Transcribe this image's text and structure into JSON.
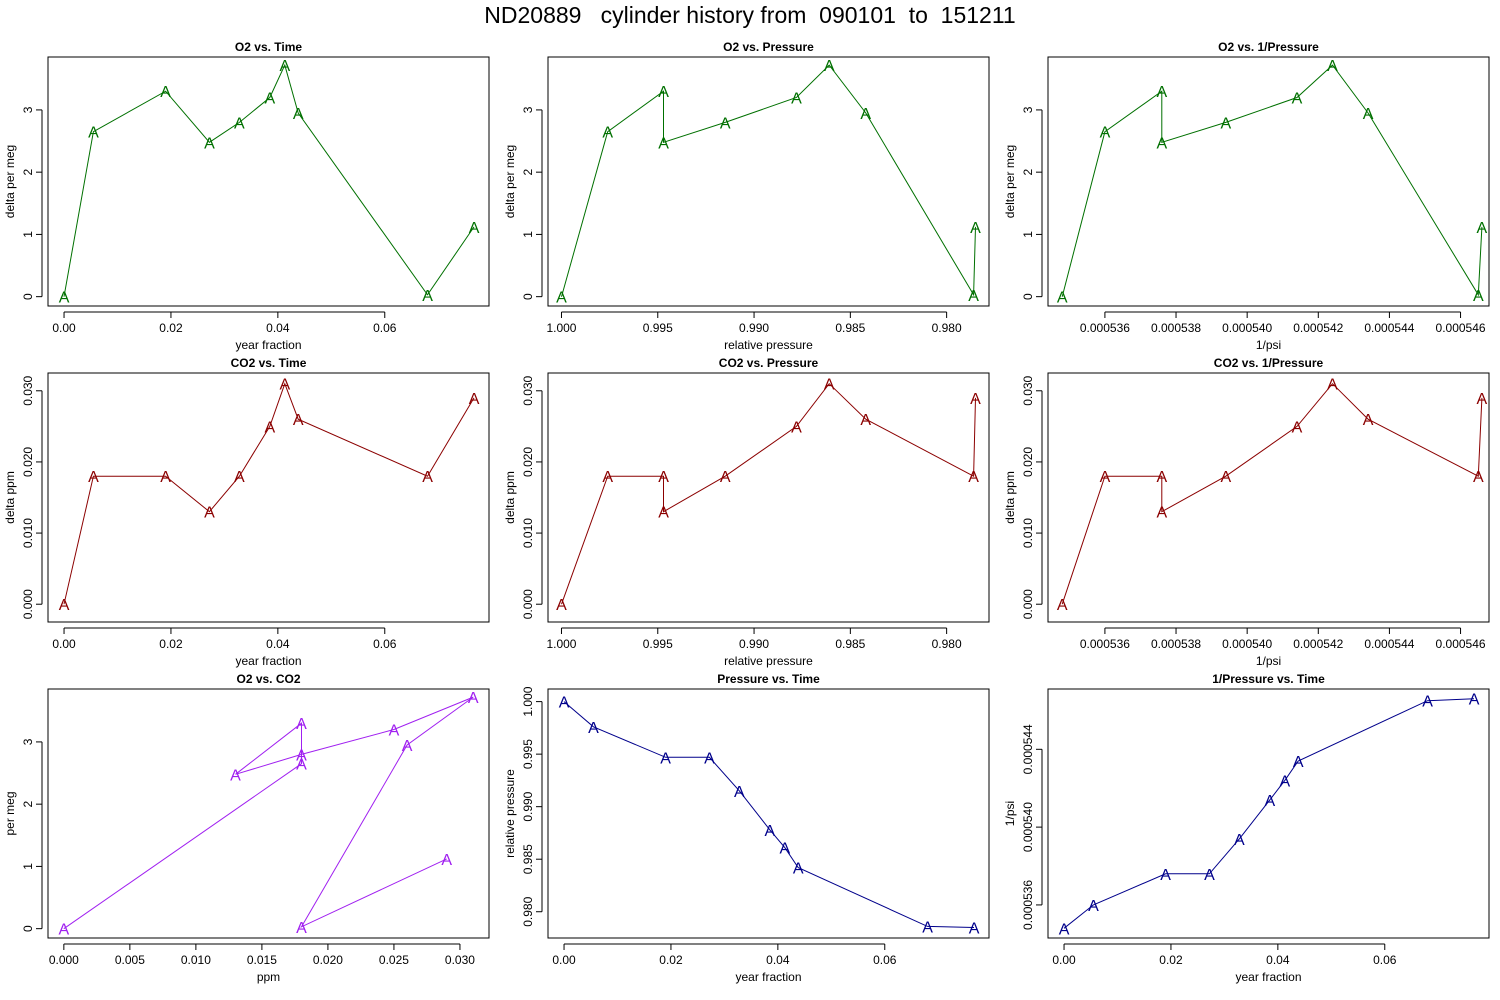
{
  "page_title": "ND20889   cylinder history from  090101  to  151211",
  "colors": {
    "o2": "#007000",
    "co2": "#8b0000",
    "o2co2": "#a020f0",
    "pressure": "#00008b"
  },
  "point_marker": "A",
  "chart_data": [
    {
      "type": "line",
      "title": "O2 vs. Time",
      "xlabel": "year fraction",
      "ylabel": "delta per meg",
      "color_key": "o2",
      "xlim": [
        -0.003,
        0.0795
      ],
      "ylim": [
        -0.15,
        3.85
      ],
      "xticks": [
        0,
        0.02,
        0.04,
        0.06
      ],
      "xtick_labels": [
        "0.00",
        "0.02",
        "0.04",
        "0.06"
      ],
      "yticks": [
        0,
        1,
        2,
        3
      ],
      "ytick_labels": [
        "0",
        "1",
        "2",
        "3"
      ],
      "series": [
        {
          "x": [
            0,
            0.0055,
            0.019,
            0.0272,
            0.0328,
            0.0385,
            0.0413,
            0.0438,
            0.068,
            0.0767
          ],
          "y": [
            0,
            2.65,
            3.3,
            2.48,
            2.8,
            3.2,
            3.72,
            2.95,
            0.03,
            1.12
          ]
        }
      ]
    },
    {
      "type": "line",
      "title": "O2 vs. Pressure",
      "xlabel": "relative pressure",
      "ylabel": "delta per meg",
      "color_key": "o2",
      "xlim": [
        1.0007,
        0.9778
      ],
      "ylim": [
        -0.15,
        3.85
      ],
      "xticks": [
        1.0,
        0.995,
        0.99,
        0.985,
        0.98
      ],
      "xtick_labels": [
        "1.000",
        "0.995",
        "0.990",
        "0.985",
        "0.980"
      ],
      "yticks": [
        0,
        1,
        2,
        3
      ],
      "ytick_labels": [
        "0",
        "1",
        "2",
        "3"
      ],
      "series": [
        {
          "x": [
            1.0,
            0.9976,
            0.9947,
            0.9947,
            0.9915,
            0.9878,
            0.9861,
            0.9842,
            0.9786,
            0.9785
          ],
          "y": [
            0,
            2.65,
            3.3,
            2.48,
            2.8,
            3.2,
            3.72,
            2.95,
            0.03,
            1.12
          ]
        }
      ]
    },
    {
      "type": "line",
      "title": "O2 vs. 1/Pressure",
      "xlabel": "1/psi",
      "ylabel": "delta per meg",
      "color_key": "o2",
      "xlim": [
        0.0005344,
        0.0005468
      ],
      "ylim": [
        -0.15,
        3.85
      ],
      "xticks": [
        0.000536,
        0.000538,
        0.00054,
        0.000542,
        0.000544,
        0.000546
      ],
      "xtick_labels": [
        "0.000536",
        "0.000538",
        "0.000540",
        "0.000542",
        "0.000544",
        "0.000546"
      ],
      "yticks": [
        0,
        1,
        2,
        3
      ],
      "ytick_labels": [
        "0",
        "1",
        "2",
        "3"
      ],
      "series": [
        {
          "x": [
            0.0005348,
            0.000536,
            0.0005376,
            0.0005376,
            0.0005394,
            0.0005414,
            0.0005424,
            0.0005434,
            0.0005465,
            0.0005466
          ],
          "y": [
            0,
            2.65,
            3.3,
            2.48,
            2.8,
            3.2,
            3.72,
            2.95,
            0.03,
            1.12
          ]
        }
      ]
    },
    {
      "type": "line",
      "title": "CO2 vs. Time",
      "xlabel": "year fraction",
      "ylabel": "delta ppm",
      "color_key": "co2",
      "xlim": [
        -0.003,
        0.0795
      ],
      "ylim": [
        -0.0025,
        0.0325
      ],
      "xticks": [
        0,
        0.02,
        0.04,
        0.06
      ],
      "xtick_labels": [
        "0.00",
        "0.02",
        "0.04",
        "0.06"
      ],
      "yticks": [
        0,
        0.01,
        0.02,
        0.03
      ],
      "ytick_labels": [
        "0.000",
        "0.010",
        "0.020",
        "0.030"
      ],
      "series": [
        {
          "x": [
            0,
            0.0055,
            0.019,
            0.0272,
            0.0328,
            0.0385,
            0.0413,
            0.0438,
            0.068,
            0.0767
          ],
          "y": [
            0,
            0.018,
            0.018,
            0.013,
            0.018,
            0.025,
            0.031,
            0.026,
            0.018,
            0.029
          ]
        }
      ]
    },
    {
      "type": "line",
      "title": "CO2 vs. Pressure",
      "xlabel": "relative pressure",
      "ylabel": "delta ppm",
      "color_key": "co2",
      "xlim": [
        1.0007,
        0.9778
      ],
      "ylim": [
        -0.0025,
        0.0325
      ],
      "xticks": [
        1.0,
        0.995,
        0.99,
        0.985,
        0.98
      ],
      "xtick_labels": [
        "1.000",
        "0.995",
        "0.990",
        "0.985",
        "0.980"
      ],
      "yticks": [
        0,
        0.01,
        0.02,
        0.03
      ],
      "ytick_labels": [
        "0.000",
        "0.010",
        "0.020",
        "0.030"
      ],
      "series": [
        {
          "x": [
            1.0,
            0.9976,
            0.9947,
            0.9947,
            0.9915,
            0.9878,
            0.9861,
            0.9842,
            0.9786,
            0.9785
          ],
          "y": [
            0,
            0.018,
            0.018,
            0.013,
            0.018,
            0.025,
            0.031,
            0.026,
            0.018,
            0.029
          ]
        }
      ]
    },
    {
      "type": "line",
      "title": "CO2 vs. 1/Pressure",
      "xlabel": "1/psi",
      "ylabel": "delta ppm",
      "color_key": "co2",
      "xlim": [
        0.0005344,
        0.0005468
      ],
      "ylim": [
        -0.0025,
        0.0325
      ],
      "xticks": [
        0.000536,
        0.000538,
        0.00054,
        0.000542,
        0.000544,
        0.000546
      ],
      "xtick_labels": [
        "0.000536",
        "0.000538",
        "0.000540",
        "0.000542",
        "0.000544",
        "0.000546"
      ],
      "yticks": [
        0,
        0.01,
        0.02,
        0.03
      ],
      "ytick_labels": [
        "0.000",
        "0.010",
        "0.020",
        "0.030"
      ],
      "series": [
        {
          "x": [
            0.0005348,
            0.000536,
            0.0005376,
            0.0005376,
            0.0005394,
            0.0005414,
            0.0005424,
            0.0005434,
            0.0005465,
            0.0005466
          ],
          "y": [
            0,
            0.018,
            0.018,
            0.013,
            0.018,
            0.025,
            0.031,
            0.026,
            0.018,
            0.029
          ]
        }
      ]
    },
    {
      "type": "line",
      "title": "O2 vs. CO2",
      "xlabel": "ppm",
      "ylabel": "per meg",
      "color_key": "o2co2",
      "xlim": [
        -0.0012,
        0.0322
      ],
      "ylim": [
        -0.15,
        3.85
      ],
      "xticks": [
        0,
        0.005,
        0.01,
        0.015,
        0.02,
        0.025,
        0.03
      ],
      "xtick_labels": [
        "0.000",
        "0.005",
        "0.010",
        "0.015",
        "0.020",
        "0.025",
        "0.030"
      ],
      "yticks": [
        0,
        1,
        2,
        3
      ],
      "ytick_labels": [
        "0",
        "1",
        "2",
        "3"
      ],
      "series": [
        {
          "x": [
            0,
            0.018,
            0.018,
            0.013,
            0.018,
            0.025,
            0.031,
            0.026,
            0.018,
            0.029
          ],
          "y": [
            0,
            2.65,
            3.3,
            2.48,
            2.8,
            3.2,
            3.72,
            2.95,
            0.03,
            1.12
          ]
        }
      ]
    },
    {
      "type": "line",
      "title": "Pressure vs. Time",
      "xlabel": "year fraction",
      "ylabel": "relative pressure",
      "color_key": "pressure",
      "xlim": [
        -0.003,
        0.0795
      ],
      "ylim": [
        0.9775,
        1.0012
      ],
      "xticks": [
        0,
        0.02,
        0.04,
        0.06
      ],
      "xtick_labels": [
        "0.00",
        "0.02",
        "0.04",
        "0.06"
      ],
      "yticks": [
        0.98,
        0.985,
        0.99,
        0.995,
        1.0
      ],
      "ytick_labels": [
        "0.980",
        "0.985",
        "0.990",
        "0.995",
        "1.000"
      ],
      "series": [
        {
          "x": [
            0,
            0.0055,
            0.019,
            0.0272,
            0.0328,
            0.0385,
            0.0413,
            0.0438,
            0.068,
            0.0767
          ],
          "y": [
            1.0,
            0.9976,
            0.9947,
            0.9947,
            0.9915,
            0.9878,
            0.9861,
            0.9842,
            0.9786,
            0.9785
          ]
        }
      ]
    },
    {
      "type": "line",
      "title": "1/Pressure vs. Time",
      "xlabel": "year fraction",
      "ylabel": "1/psi",
      "color_key": "pressure",
      "xlim": [
        -0.003,
        0.0795
      ],
      "ylim": [
        0.0005343,
        0.0005471
      ],
      "xticks": [
        0,
        0.02,
        0.04,
        0.06
      ],
      "xtick_labels": [
        "0.00",
        "0.02",
        "0.04",
        "0.06"
      ],
      "yticks": [
        0.000536,
        0.00054,
        0.000544
      ],
      "ytick_labels": [
        "0.000536",
        "0.000540",
        "0.000544"
      ],
      "series": [
        {
          "x": [
            0,
            0.0055,
            0.019,
            0.0272,
            0.0328,
            0.0385,
            0.0413,
            0.0438,
            0.068,
            0.0767
          ],
          "y": [
            0.0005348,
            0.000536,
            0.0005376,
            0.0005376,
            0.0005394,
            0.0005414,
            0.0005424,
            0.0005434,
            0.0005465,
            0.0005466
          ]
        }
      ]
    }
  ]
}
